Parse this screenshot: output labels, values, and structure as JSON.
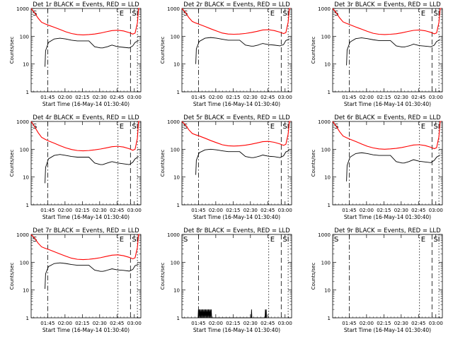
{
  "common": {
    "xlabel": "Start Time (16-May-14 01:30:40)",
    "ylabel": "Counts/sec",
    "x_ticks": [
      "01:45",
      "02:00",
      "02:15",
      "02:30",
      "02:45",
      "03:00"
    ],
    "y_ticks": [
      "1",
      "10",
      "100",
      "1000"
    ],
    "marker_S": "S",
    "marker_E": "E",
    "marker_SI": "SI",
    "event_color": "#000000",
    "lld_color": "#ff0000"
  },
  "chart_data": [
    {
      "type": "line",
      "title": "Det 1r BLACK = Events, RED = LLD",
      "yscale": "log",
      "ylim": [
        1,
        1000
      ],
      "x_units": "minutes after 01:30:40",
      "series": [
        {
          "color": "#000000",
          "x": [
            12,
            12.5,
            15,
            20,
            25,
            30,
            35,
            40,
            45,
            50,
            55,
            60,
            62,
            64,
            66,
            68,
            70,
            75,
            80,
            85,
            88,
            90,
            93
          ],
          "y": [
            8,
            30,
            60,
            80,
            85,
            80,
            72,
            68,
            68,
            68,
            42,
            38,
            38,
            40,
            42,
            45,
            48,
            42,
            40,
            38,
            45,
            60,
            70
          ]
        },
        {
          "color": "#ff0000",
          "x": [
            0,
            3,
            6,
            9,
            12,
            15,
            20,
            25,
            30,
            35,
            40,
            45,
            50,
            55,
            60,
            65,
            70,
            75,
            80,
            85,
            88,
            90,
            92,
            93,
            94
          ],
          "y": [
            1000,
            700,
            450,
            320,
            280,
            250,
            210,
            175,
            145,
            125,
            115,
            112,
            115,
            120,
            130,
            145,
            160,
            165,
            155,
            135,
            120,
            130,
            300,
            1000,
            1000
          ]
        }
      ]
    },
    {
      "type": "line",
      "title": "Det 2r BLACK = Events, RED = LLD",
      "yscale": "log",
      "ylim": [
        1,
        1000
      ],
      "x_units": "minutes after 01:30:40",
      "series": [
        {
          "color": "#000000",
          "x": [
            12,
            12.5,
            15,
            20,
            25,
            30,
            35,
            40,
            45,
            50,
            55,
            60,
            62,
            64,
            66,
            68,
            70,
            75,
            80,
            85,
            88,
            90,
            93
          ],
          "y": [
            10,
            35,
            65,
            85,
            90,
            85,
            78,
            72,
            72,
            72,
            48,
            44,
            44,
            46,
            48,
            52,
            55,
            50,
            48,
            45,
            50,
            70,
            80
          ]
        },
        {
          "color": "#ff0000",
          "x": [
            0,
            3,
            6,
            9,
            12,
            15,
            20,
            25,
            30,
            35,
            40,
            45,
            50,
            55,
            60,
            65,
            70,
            75,
            80,
            85,
            88,
            90,
            92,
            93,
            94
          ],
          "y": [
            1000,
            720,
            470,
            340,
            300,
            270,
            225,
            185,
            155,
            130,
            120,
            118,
            120,
            126,
            136,
            150,
            168,
            172,
            160,
            140,
            125,
            135,
            320,
            1000,
            1000
          ]
        }
      ]
    },
    {
      "type": "line",
      "title": "Det 3r BLACK = Events, RED = LLD",
      "yscale": "log",
      "ylim": [
        1,
        1000
      ],
      "x_units": "minutes after 01:30:40",
      "series": [
        {
          "color": "#000000",
          "x": [
            12,
            12.5,
            15,
            20,
            25,
            30,
            35,
            40,
            45,
            50,
            55,
            60,
            62,
            64,
            66,
            68,
            70,
            75,
            80,
            85,
            88,
            90,
            93
          ],
          "y": [
            9,
            32,
            62,
            82,
            88,
            82,
            75,
            70,
            70,
            70,
            45,
            41,
            41,
            43,
            45,
            48,
            52,
            46,
            44,
            42,
            48,
            65,
            75
          ]
        },
        {
          "color": "#ff0000",
          "x": [
            0,
            3,
            6,
            9,
            12,
            15,
            20,
            25,
            30,
            35,
            40,
            45,
            50,
            55,
            60,
            65,
            70,
            75,
            80,
            85,
            88,
            90,
            92,
            93,
            94
          ],
          "y": [
            1000,
            710,
            460,
            330,
            290,
            260,
            215,
            180,
            150,
            128,
            118,
            115,
            118,
            123,
            133,
            148,
            163,
            168,
            158,
            138,
            122,
            132,
            310,
            1000,
            1000
          ]
        }
      ]
    },
    {
      "type": "line",
      "title": "Det 4r BLACK = Events, RED = LLD",
      "yscale": "log",
      "ylim": [
        1,
        1000
      ],
      "x_units": "minutes after 01:30:40",
      "series": [
        {
          "color": "#000000",
          "x": [
            12,
            12.5,
            15,
            20,
            25,
            30,
            35,
            40,
            45,
            50,
            55,
            60,
            62,
            64,
            66,
            68,
            70,
            75,
            80,
            85,
            88,
            90,
            93
          ],
          "y": [
            6,
            22,
            45,
            60,
            65,
            60,
            55,
            52,
            52,
            52,
            32,
            28,
            28,
            30,
            32,
            34,
            36,
            32,
            30,
            28,
            34,
            45,
            55
          ]
        },
        {
          "color": "#ff0000",
          "x": [
            0,
            3,
            6,
            9,
            12,
            15,
            20,
            25,
            30,
            35,
            40,
            45,
            50,
            55,
            60,
            65,
            70,
            75,
            80,
            85,
            88,
            90,
            92,
            93,
            94
          ],
          "y": [
            1000,
            650,
            400,
            270,
            230,
            200,
            165,
            135,
            112,
            98,
            90,
            88,
            90,
            95,
            102,
            112,
            124,
            128,
            120,
            104,
            92,
            100,
            250,
            1000,
            1000
          ]
        }
      ]
    },
    {
      "type": "line",
      "title": "Det 5r BLACK = Events, RED = LLD",
      "yscale": "log",
      "ylim": [
        1,
        1000
      ],
      "x_units": "minutes after 01:30:40",
      "series": [
        {
          "color": "#000000",
          "x": [
            12,
            12.5,
            15,
            20,
            25,
            30,
            35,
            40,
            45,
            50,
            55,
            60,
            62,
            64,
            66,
            68,
            70,
            75,
            80,
            85,
            88,
            90,
            93
          ],
          "y": [
            12,
            40,
            75,
            95,
            100,
            95,
            88,
            82,
            82,
            82,
            55,
            50,
            50,
            52,
            55,
            58,
            62,
            56,
            54,
            50,
            58,
            80,
            90
          ]
        },
        {
          "color": "#ff0000",
          "x": [
            0,
            3,
            6,
            9,
            12,
            15,
            20,
            25,
            30,
            35,
            40,
            45,
            50,
            55,
            60,
            65,
            70,
            75,
            80,
            85,
            88,
            90,
            92,
            93,
            94
          ],
          "y": [
            1000,
            760,
            500,
            370,
            330,
            300,
            250,
            205,
            172,
            145,
            133,
            130,
            133,
            140,
            152,
            168,
            188,
            192,
            178,
            155,
            138,
            150,
            350,
            1000,
            1000
          ]
        }
      ]
    },
    {
      "type": "line",
      "title": "Det 6r BLACK = Events, RED = LLD",
      "yscale": "log",
      "ylim": [
        1,
        1000
      ],
      "x_units": "minutes after 01:30:40",
      "series": [
        {
          "color": "#000000",
          "x": [
            12,
            12.5,
            15,
            20,
            25,
            30,
            35,
            40,
            45,
            50,
            55,
            60,
            62,
            64,
            66,
            68,
            70,
            75,
            80,
            85,
            88,
            90,
            93
          ],
          "y": [
            7,
            26,
            52,
            70,
            75,
            70,
            63,
            60,
            60,
            60,
            36,
            32,
            32,
            34,
            36,
            39,
            42,
            37,
            35,
            33,
            40,
            52,
            62
          ]
        },
        {
          "color": "#ff0000",
          "x": [
            0,
            3,
            6,
            9,
            12,
            15,
            20,
            25,
            30,
            35,
            40,
            45,
            50,
            55,
            60,
            65,
            70,
            75,
            80,
            85,
            88,
            90,
            92,
            93,
            94
          ],
          "y": [
            1000,
            680,
            430,
            300,
            260,
            230,
            190,
            155,
            128,
            112,
            103,
            100,
            103,
            108,
            116,
            128,
            142,
            146,
            136,
            118,
            105,
            114,
            280,
            1000,
            1000
          ]
        }
      ]
    },
    {
      "type": "line",
      "title": "Det 7r BLACK = Events, RED = LLD",
      "yscale": "log",
      "ylim": [
        1,
        1000
      ],
      "x_units": "minutes after 01:30:40",
      "series": [
        {
          "color": "#000000",
          "x": [
            12,
            12.5,
            15,
            20,
            25,
            30,
            35,
            40,
            45,
            50,
            55,
            60,
            62,
            64,
            66,
            68,
            70,
            75,
            80,
            85,
            88,
            90,
            93
          ],
          "y": [
            11,
            38,
            70,
            90,
            95,
            90,
            83,
            78,
            78,
            78,
            52,
            47,
            47,
            49,
            52,
            55,
            58,
            53,
            51,
            48,
            55,
            75,
            85
          ]
        },
        {
          "color": "#ff0000",
          "x": [
            0,
            3,
            6,
            9,
            12,
            15,
            20,
            25,
            30,
            35,
            40,
            45,
            50,
            55,
            60,
            65,
            70,
            75,
            80,
            85,
            88,
            90,
            92,
            93,
            94
          ],
          "y": [
            1000,
            740,
            490,
            360,
            320,
            290,
            240,
            198,
            165,
            140,
            128,
            125,
            128,
            135,
            146,
            162,
            180,
            185,
            172,
            150,
            133,
            145,
            340,
            1000,
            1000
          ]
        }
      ]
    },
    {
      "type": "line",
      "title": "Det 8r BLACK = Events, RED = LLD",
      "yscale": "log",
      "ylim": [
        1,
        1000
      ],
      "x_units": "minutes after 01:30:40",
      "series": [
        {
          "color": "#000000",
          "x": [
            14,
            14.3,
            14.6,
            15,
            15.4,
            15.8,
            16.2,
            16.6,
            17,
            17.4,
            17.8,
            18.2,
            18.6,
            19,
            19.4,
            19.8,
            20.2,
            20.6,
            21,
            21.4,
            21.8,
            22.2,
            22.6,
            23,
            23.4,
            23.8,
            24.2,
            24.6,
            25,
            25.4,
            25.8,
            26.2,
            60,
            60.3,
            60.6,
            72,
            72.3,
            72.6,
            73,
            73.3,
            73.6
          ],
          "y": [
            1,
            2,
            1,
            2,
            1,
            2,
            1,
            2,
            1,
            2,
            1,
            2,
            1,
            2,
            1,
            2,
            1,
            2,
            1,
            2,
            1,
            2,
            1,
            2,
            1,
            2,
            1,
            2,
            1,
            2,
            1,
            1,
            1,
            2,
            1,
            1,
            2,
            1,
            2,
            1,
            1
          ]
        }
      ]
    },
    {
      "type": "line",
      "title": "Det 9r BLACK = Events, RED = LLD",
      "yscale": "log",
      "ylim": [
        1,
        1000
      ],
      "x_units": "minutes after 01:30:40",
      "series": []
    }
  ]
}
